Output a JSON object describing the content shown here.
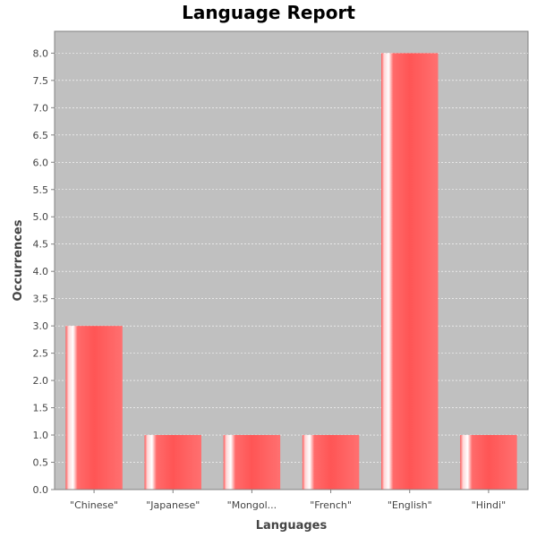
{
  "chart_data": {
    "type": "bar",
    "title": "Language Report",
    "xlabel": "Languages",
    "ylabel": "Occurrences",
    "categories": [
      "\"Chinese\"",
      "\"Japanese\"",
      "\"Mongol...",
      "\"French\"",
      "\"English\"",
      "\"Hindi\""
    ],
    "values": [
      3,
      1,
      1,
      1,
      8,
      1
    ],
    "ylim": [
      0,
      8.4
    ],
    "yticks": [
      0.0,
      0.5,
      1.0,
      1.5,
      2.0,
      2.5,
      3.0,
      3.5,
      4.0,
      4.5,
      5.0,
      5.5,
      6.0,
      6.5,
      7.0,
      7.5,
      8.0
    ],
    "grid": true,
    "legend": "none",
    "colors": {
      "bar": "#ff5555",
      "bar_highlight": "#ffffff",
      "plot_background": "#c0c0c0",
      "gridline": "#ffffff"
    }
  }
}
